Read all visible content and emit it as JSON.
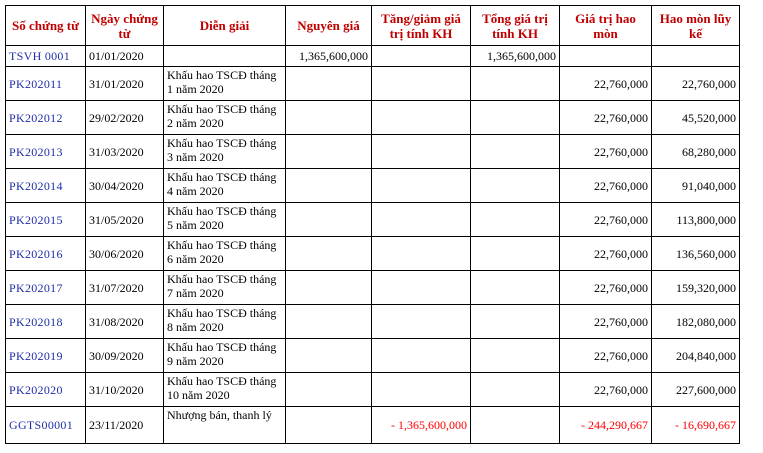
{
  "headers": {
    "doc_no": "Số chứng từ",
    "doc_date": "Ngày chứng từ",
    "description": "Diễn giải",
    "original_cost": "Nguyên giá",
    "change_value": "Tăng/giảm giá trị tính KH",
    "total_value": "Tổng giá trị tính KH",
    "depreciation": "Giá trị hao mòn",
    "accumulated": "Hao mòn lũy kế"
  },
  "rows": [
    {
      "doc_no": "TSVH 0001",
      "date": "01/01/2020",
      "description": "",
      "original_cost": "1,365,600,000",
      "change_value": "",
      "total_value": "1,365,600,000",
      "depreciation": "",
      "accumulated": ""
    },
    {
      "doc_no": "PK202011",
      "date": "31/01/2020",
      "description": "Khấu hao TSCĐ tháng 1 năm 2020",
      "original_cost": "",
      "change_value": "",
      "total_value": "",
      "depreciation": "22,760,000",
      "accumulated": "22,760,000"
    },
    {
      "doc_no": "PK202012",
      "date": "29/02/2020",
      "description": "Khấu hao TSCĐ tháng 2 năm 2020",
      "original_cost": "",
      "change_value": "",
      "total_value": "",
      "depreciation": "22,760,000",
      "accumulated": "45,520,000"
    },
    {
      "doc_no": "PK202013",
      "date": "31/03/2020",
      "description": "Khấu hao TSCĐ tháng 3 năm 2020",
      "original_cost": "",
      "change_value": "",
      "total_value": "",
      "depreciation": "22,760,000",
      "accumulated": "68,280,000"
    },
    {
      "doc_no": "PK202014",
      "date": "30/04/2020",
      "description": "Khấu hao TSCĐ tháng 4 năm 2020",
      "original_cost": "",
      "change_value": "",
      "total_value": "",
      "depreciation": "22,760,000",
      "accumulated": "91,040,000"
    },
    {
      "doc_no": "PK202015",
      "date": "31/05/2020",
      "description": "Khấu hao TSCĐ tháng 5 năm 2020",
      "original_cost": "",
      "change_value": "",
      "total_value": "",
      "depreciation": "22,760,000",
      "accumulated": "113,800,000"
    },
    {
      "doc_no": "PK202016",
      "date": "30/06/2020",
      "description": "Khấu hao TSCĐ tháng 6 năm 2020",
      "original_cost": "",
      "change_value": "",
      "total_value": "",
      "depreciation": "22,760,000",
      "accumulated": "136,560,000"
    },
    {
      "doc_no": "PK202017",
      "date": "31/07/2020",
      "description": "Khấu hao TSCĐ tháng 7 năm 2020",
      "original_cost": "",
      "change_value": "",
      "total_value": "",
      "depreciation": "22,760,000",
      "accumulated": "159,320,000"
    },
    {
      "doc_no": "PK202018",
      "date": "31/08/2020",
      "description": "Khấu hao TSCĐ tháng 8 năm 2020",
      "original_cost": "",
      "change_value": "",
      "total_value": "",
      "depreciation": "22,760,000",
      "accumulated": "182,080,000"
    },
    {
      "doc_no": "PK202019",
      "date": "30/09/2020",
      "description": "Khấu hao TSCĐ tháng 9 năm 2020",
      "original_cost": "",
      "change_value": "",
      "total_value": "",
      "depreciation": "22,760,000",
      "accumulated": "204,840,000"
    },
    {
      "doc_no": "PK202020",
      "date": "31/10/2020",
      "description": "Khấu hao TSCĐ tháng 10 năm 2020",
      "original_cost": "",
      "change_value": "",
      "total_value": "",
      "depreciation": "22,760,000",
      "accumulated": "227,600,000"
    },
    {
      "doc_no": "GGTS00001",
      "date": "23/11/2020",
      "description": "Nhượng bán, thanh lý",
      "original_cost": "",
      "change_value": "- 1,365,600,000",
      "total_value": "",
      "depreciation": "- 244,290,667",
      "accumulated": "- 16,690,667"
    }
  ],
  "colors": {
    "header_text": "#c00000",
    "doc_link": "#1f2ea8",
    "negative": "#ff0000",
    "border": "#000000"
  }
}
